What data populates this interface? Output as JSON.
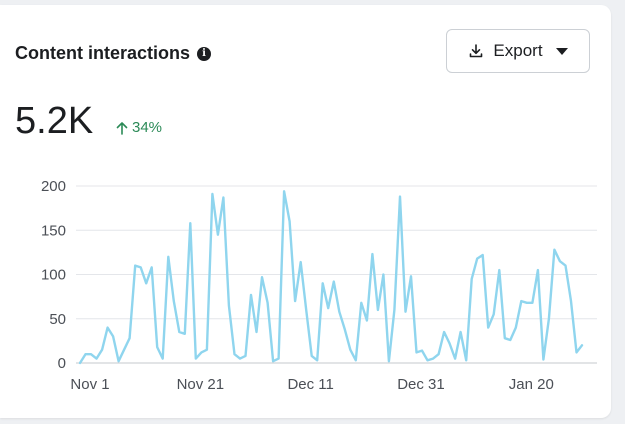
{
  "card": {
    "title": "Content interactions",
    "export_label": "Export",
    "metric_value": "5.2K",
    "change_text": "34%",
    "accent_color": "#8fd5ee",
    "positive_color": "#2b8a57"
  },
  "chart_data": {
    "type": "line",
    "title": "Content interactions",
    "xlabel": "",
    "ylabel": "",
    "ylim": [
      0,
      200
    ],
    "y_ticks": [
      "0",
      "50",
      "100",
      "150",
      "200"
    ],
    "x_ticks": [
      "Nov 1",
      "Nov 21",
      "Dec 11",
      "Dec 31",
      "Jan 20"
    ],
    "grid": true,
    "series": [
      {
        "name": "Content interactions",
        "values": [
          0,
          10,
          10,
          5,
          15,
          40,
          30,
          2,
          15,
          28,
          110,
          108,
          90,
          108,
          18,
          5,
          120,
          70,
          35,
          33,
          158,
          5,
          12,
          15,
          191,
          145,
          187,
          65,
          10,
          5,
          8,
          77,
          35,
          97,
          68,
          2,
          5,
          194,
          160,
          70,
          114,
          60,
          8,
          3,
          90,
          62,
          92,
          58,
          38,
          15,
          3,
          68,
          48,
          123,
          60,
          100,
          2,
          60,
          188,
          58,
          98,
          12,
          14,
          3,
          5,
          10,
          35,
          22,
          5,
          35,
          3,
          95,
          118,
          122,
          40,
          55,
          105,
          28,
          26,
          40,
          70,
          68,
          68,
          105,
          4,
          50,
          128,
          115,
          110,
          70,
          12,
          20
        ]
      }
    ]
  }
}
